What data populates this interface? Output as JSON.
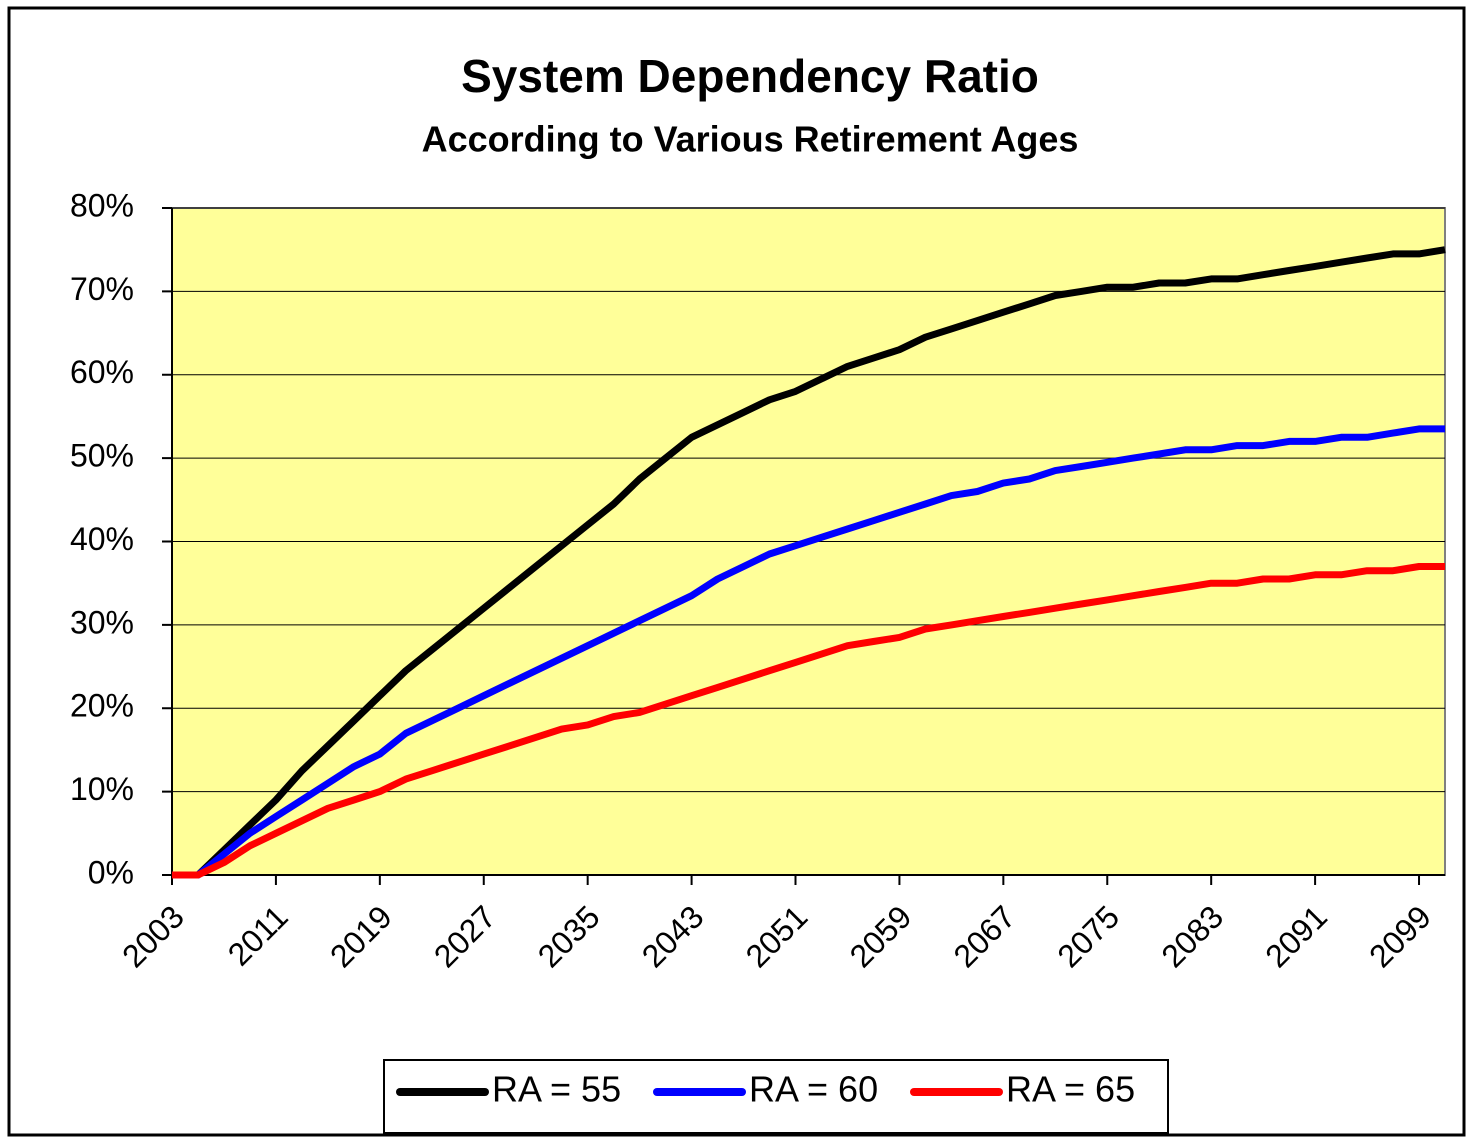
{
  "chart_data": {
    "type": "line",
    "title": "System Dependency Ratio",
    "subtitle": "According to Various Retirement Ages",
    "x": [
      2003,
      2005,
      2007,
      2009,
      2011,
      2013,
      2015,
      2017,
      2019,
      2021,
      2023,
      2025,
      2027,
      2029,
      2031,
      2033,
      2035,
      2037,
      2039,
      2041,
      2043,
      2045,
      2047,
      2049,
      2051,
      2053,
      2055,
      2057,
      2059,
      2061,
      2063,
      2065,
      2067,
      2069,
      2071,
      2073,
      2075,
      2077,
      2079,
      2081,
      2083,
      2085,
      2087,
      2089,
      2091,
      2093,
      2095,
      2097,
      2099,
      2101
    ],
    "series": [
      {
        "name": "RA = 55",
        "color": "#000000",
        "values": [
          0,
          0,
          3,
          6,
          9,
          12.5,
          15.5,
          18.5,
          21.5,
          24.5,
          27,
          29.5,
          32,
          34.5,
          37,
          39.5,
          42,
          44.5,
          47.5,
          50,
          52.5,
          54,
          55.5,
          57,
          58,
          59.5,
          61,
          62,
          63,
          64.5,
          65.5,
          66.5,
          67.5,
          68.5,
          69.5,
          70,
          70.5,
          70.5,
          71,
          71,
          71.5,
          71.5,
          72,
          72.5,
          73,
          73.5,
          74,
          74.5,
          74.5,
          75
        ]
      },
      {
        "name": "RA = 60",
        "color": "#0000ff",
        "values": [
          0,
          0,
          2.5,
          5,
          7,
          9,
          11,
          13,
          14.5,
          17,
          18.5,
          20,
          21.5,
          23,
          24.5,
          26,
          27.5,
          29,
          30.5,
          32,
          33.5,
          35.5,
          37,
          38.5,
          39.5,
          40.5,
          41.5,
          42.5,
          43.5,
          44.5,
          45.5,
          46,
          47,
          47.5,
          48.5,
          49,
          49.5,
          50,
          50.5,
          51,
          51,
          51.5,
          51.5,
          52,
          52,
          52.5,
          52.5,
          53,
          53.5,
          53.5
        ]
      },
      {
        "name": "RA = 65",
        "color": "#ff0000",
        "values": [
          0,
          0,
          1.5,
          3.5,
          5,
          6.5,
          8,
          9,
          10,
          11.5,
          12.5,
          13.5,
          14.5,
          15.5,
          16.5,
          17.5,
          18,
          19,
          19.5,
          20.5,
          21.5,
          22.5,
          23.5,
          24.5,
          25.5,
          26.5,
          27.5,
          28,
          28.5,
          29.5,
          30,
          30.5,
          31,
          31.5,
          32,
          32.5,
          33,
          33.5,
          34,
          34.5,
          35,
          35,
          35.5,
          35.5,
          36,
          36,
          36.5,
          36.5,
          37,
          37
        ]
      }
    ],
    "xlim": [
      2003,
      2101
    ],
    "xticks": [
      2003,
      2011,
      2019,
      2027,
      2035,
      2043,
      2051,
      2059,
      2067,
      2075,
      2083,
      2091,
      2099
    ],
    "ylim": [
      0,
      80
    ],
    "yticks": [
      {
        "value": 0,
        "label": "0%"
      },
      {
        "value": 10,
        "label": "10%"
      },
      {
        "value": 20,
        "label": "20%"
      },
      {
        "value": 30,
        "label": "30%"
      },
      {
        "value": 40,
        "label": "40%"
      },
      {
        "value": 50,
        "label": "50%"
      },
      {
        "value": 60,
        "label": "60%"
      },
      {
        "value": 70,
        "label": "70%"
      },
      {
        "value": 80,
        "label": "80%"
      }
    ],
    "grid": true,
    "plot_background": "#ffff99",
    "legend": "bottom"
  }
}
